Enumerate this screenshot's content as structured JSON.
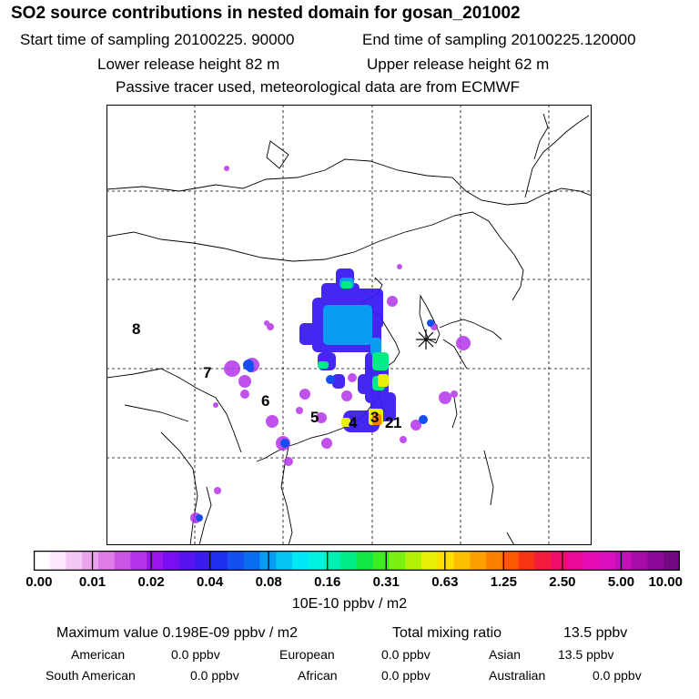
{
  "header": {
    "title": "SO2 source contributions in nested domain for gosan_201002",
    "start_label": "Start time of sampling 20100225. 90000",
    "end_label": "End time of sampling 20100225.120000",
    "lower_label": "Lower release height   82 m",
    "upper_label": "Upper release height   62 m",
    "info": "Passive tracer used, meteorological data are from ECMWF"
  },
  "map": {
    "region_labels": [
      "1",
      "2",
      "3",
      "4",
      "5",
      "6",
      "7",
      "8"
    ],
    "receptor": "gosan"
  },
  "colorbar": {
    "ticks": [
      "0.00",
      "0.01",
      "0.02",
      "0.04",
      "0.08",
      "0.16",
      "0.31",
      "0.63",
      "1.25",
      "2.50",
      "5.00",
      "10.00"
    ],
    "colors": [
      "#ffffff",
      "#fce8fc",
      "#f4c8f4",
      "#eca4ee",
      "#e07ce8",
      "#cc55e6",
      "#b433ea",
      "#9a14ee",
      "#7a0ef2",
      "#5814f0",
      "#3a1cf0",
      "#2030f0",
      "#1450f0",
      "#0a6ef0",
      "#089cf2",
      "#06c4f6",
      "#00e8f8",
      "#00f2e0",
      "#00f0b4",
      "#00ec84",
      "#10e848",
      "#3cec20",
      "#7cf010",
      "#b4f208",
      "#e8f008",
      "#fce000",
      "#fcc000",
      "#fca000",
      "#fc8000",
      "#fc5a00",
      "#f83414",
      "#f41c3c",
      "#f00c6c",
      "#ec0898",
      "#e60cb4",
      "#da10c0",
      "#c410b8",
      "#a80ca8",
      "#8c0898",
      "#700880"
    ],
    "units": "10E-10 ppbv / m2"
  },
  "summary": {
    "max_label": "Maximum value  0.198E-09 ppbv / m2",
    "total_label": "Total mixing ratio",
    "total_value": "13.5 ppbv",
    "american_label": "American",
    "american_value": "0.0 ppbv",
    "european_label": "European",
    "european_value": "0.0 ppbv",
    "asian_label": "Asian",
    "asian_value": "13.5 ppbv",
    "south_american_label": "South American",
    "south_american_value": "0.0 ppbv",
    "african_label": "African",
    "african_value": "0.0 ppbv",
    "australian_label": "Australian",
    "australian_value": "0.0 ppbv"
  }
}
